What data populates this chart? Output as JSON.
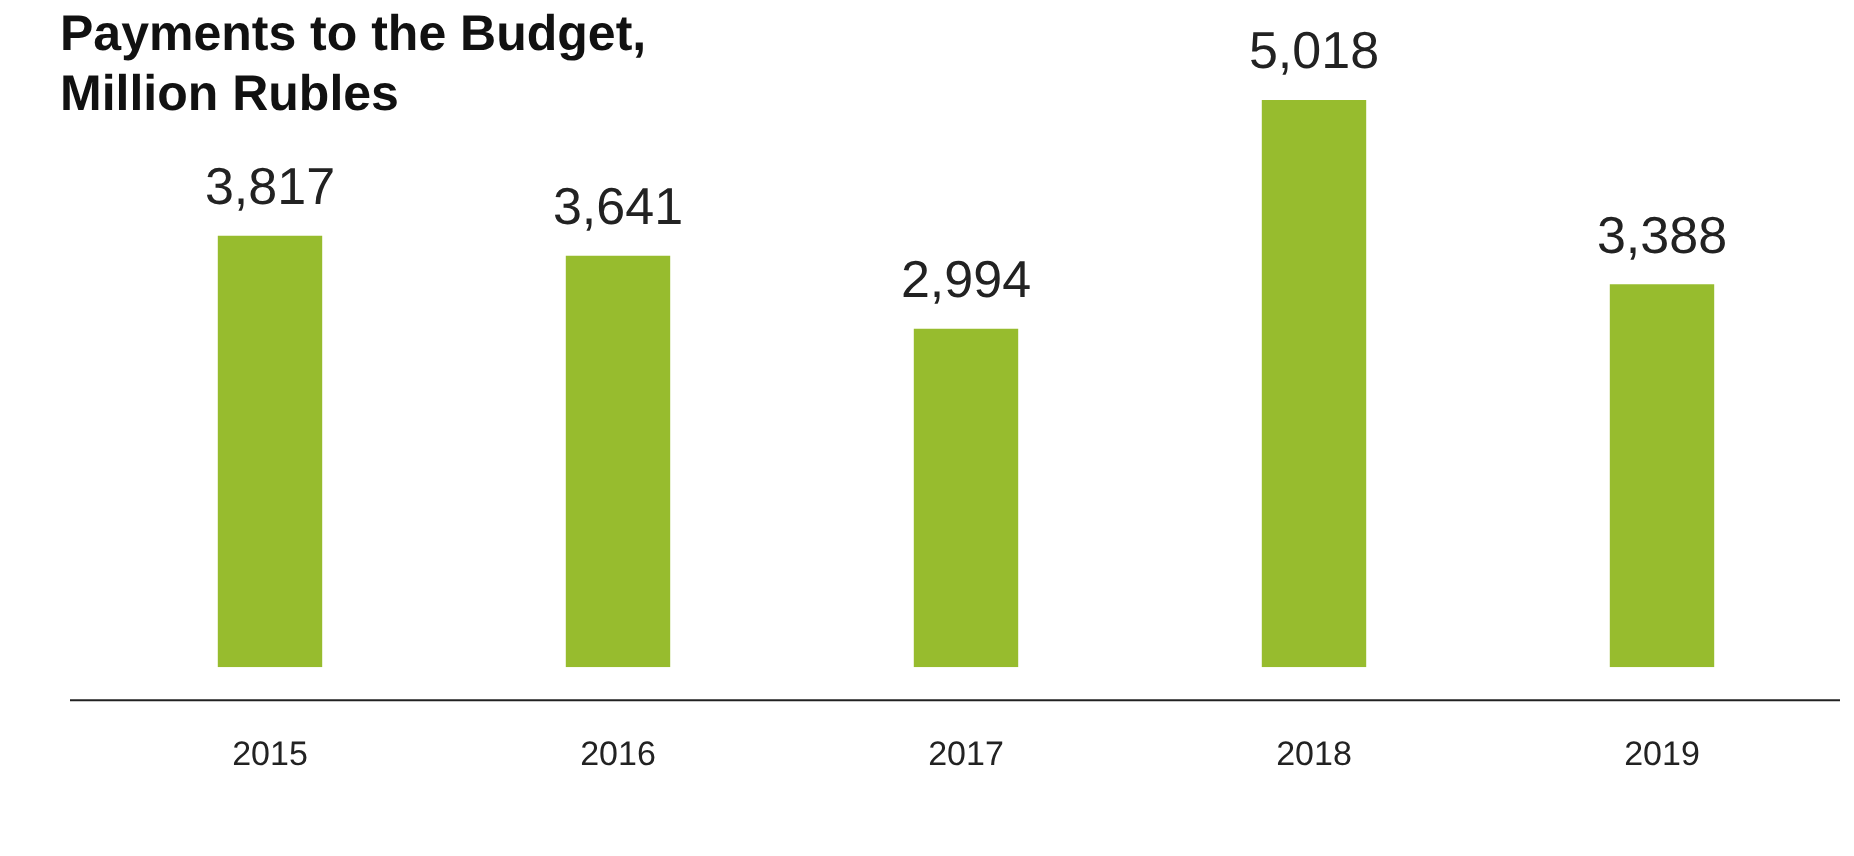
{
  "chart_data": {
    "type": "bar",
    "title": "Payments to the Budget, Million Rubles",
    "categories": [
      "2015",
      "2016",
      "2017",
      "2018",
      "2019"
    ],
    "values": [
      3817,
      3641,
      2994,
      5018,
      3388
    ],
    "color": "#97bc2e",
    "value_labels": [
      "3,817",
      "3,641",
      "2,994",
      "5,018",
      "3,388"
    ],
    "legend": false,
    "grid": false
  }
}
